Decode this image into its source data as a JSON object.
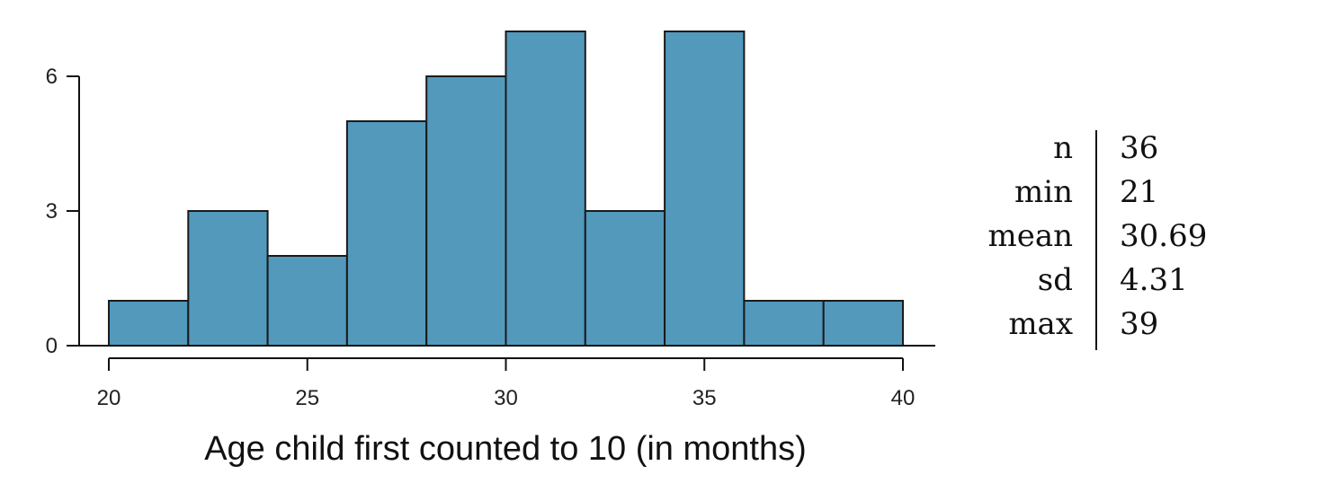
{
  "chart_data": {
    "type": "bar",
    "subtype": "histogram",
    "bins": [
      {
        "from": 20,
        "to": 22,
        "count": 1
      },
      {
        "from": 22,
        "to": 24,
        "count": 3
      },
      {
        "from": 24,
        "to": 26,
        "count": 2
      },
      {
        "from": 26,
        "to": 28,
        "count": 5
      },
      {
        "from": 28,
        "to": 30,
        "count": 6
      },
      {
        "from": 30,
        "to": 32,
        "count": 7
      },
      {
        "from": 32,
        "to": 34,
        "count": 3
      },
      {
        "from": 34,
        "to": 36,
        "count": 7
      },
      {
        "from": 36,
        "to": 38,
        "count": 1
      },
      {
        "from": 38,
        "to": 40,
        "count": 1
      }
    ],
    "title": "",
    "xlabel": "Age child first counted to 10 (in months)",
    "ylabel": "",
    "xlim": [
      20,
      40
    ],
    "ylim": [
      0,
      7
    ],
    "xticks": [
      20,
      25,
      30,
      35,
      40
    ],
    "yticks": [
      0,
      3,
      6
    ],
    "grid": false,
    "bar_color": "#5299BC",
    "edge_color": "#1A1A1A"
  },
  "summary_stats": [
    {
      "label": "n",
      "value": "36"
    },
    {
      "label": "min",
      "value": "21"
    },
    {
      "label": "mean",
      "value": "30.69"
    },
    {
      "label": "sd",
      "value": "4.31"
    },
    {
      "label": "max",
      "value": "39"
    }
  ]
}
